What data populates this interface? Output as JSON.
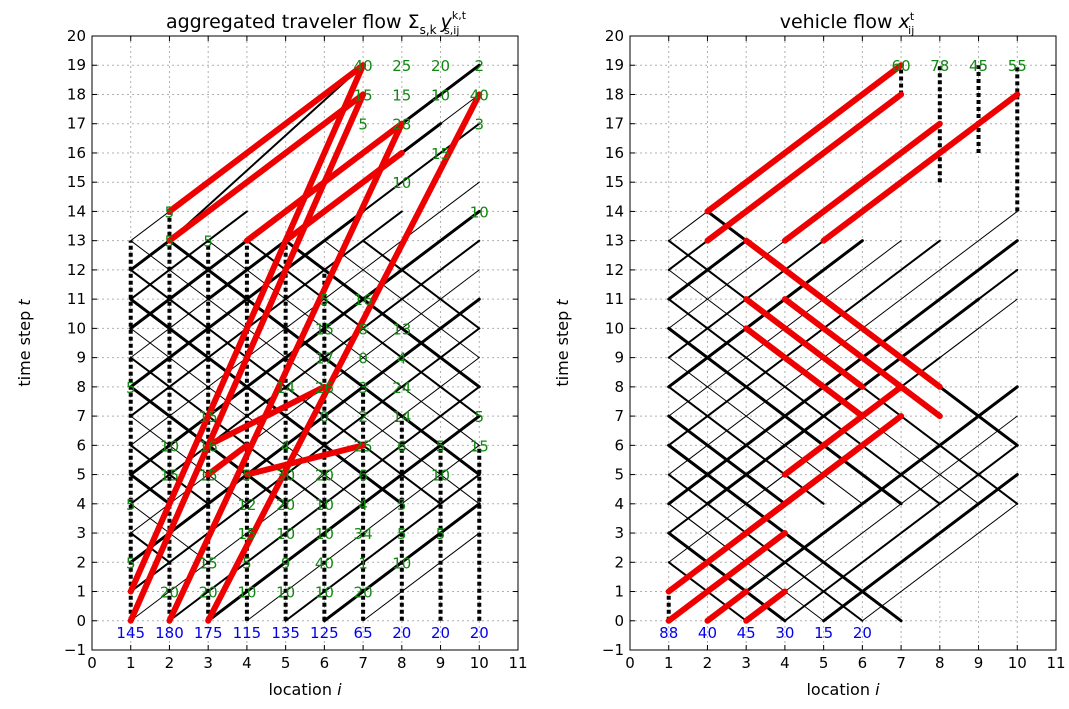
{
  "figure": {
    "left_title_prefix": "aggregated traveler flow Σ",
    "left_title_sub": "s,k",
    "left_title_y": "y",
    "left_title_y_sup": "k,t",
    "left_title_y_sub": "s,ij",
    "right_title_prefix": "vehicle flow ",
    "right_title_x": "x",
    "right_title_x_sup": "t",
    "right_title_x_sub": "ij"
  },
  "axis_text": {
    "xlabel_word": "location ",
    "xlabel_var": "i",
    "ylabel_word": "time step ",
    "ylabel_var": "t"
  },
  "colors": {
    "flow_line": "#000000",
    "highlight_line": "#ee0000",
    "top_label": "#118811",
    "bottom_label": "#0000ee",
    "grid": "#b0b0b0"
  },
  "chart_data": [
    {
      "type": "line",
      "panel": "left",
      "title": "aggregated traveler flow Σ_{s,k} y^{k,t}_{s,ij}",
      "xlabel": "location i",
      "ylabel": "time step t",
      "xlim": [
        0,
        11
      ],
      "ylim": [
        -1,
        20
      ],
      "xticks": [
        0,
        1,
        2,
        3,
        4,
        5,
        6,
        7,
        8,
        9,
        10,
        11
      ],
      "yticks": [
        -1,
        0,
        1,
        2,
        3,
        4,
        5,
        6,
        7,
        8,
        9,
        10,
        11,
        12,
        13,
        14,
        15,
        16,
        17,
        18,
        19,
        20
      ],
      "grid": true,
      "top_labels": [
        {
          "x": 7,
          "y": 19,
          "text": "40"
        },
        {
          "x": 8,
          "y": 19,
          "text": "25"
        },
        {
          "x": 9,
          "y": 19,
          "text": "20"
        },
        {
          "x": 10,
          "y": 19,
          "text": "2"
        },
        {
          "x": 7,
          "y": 18,
          "text": "15"
        },
        {
          "x": 8,
          "y": 18,
          "text": "15"
        },
        {
          "x": 9,
          "y": 18,
          "text": "10"
        },
        {
          "x": 10,
          "y": 18,
          "text": "40"
        },
        {
          "x": 7,
          "y": 17,
          "text": "5"
        },
        {
          "x": 8,
          "y": 17,
          "text": "28"
        },
        {
          "x": 10,
          "y": 17,
          "text": "3"
        },
        {
          "x": 9,
          "y": 16,
          "text": "15"
        },
        {
          "x": 8,
          "y": 15,
          "text": "10"
        },
        {
          "x": 10,
          "y": 14,
          "text": "10"
        },
        {
          "x": 2,
          "y": 14,
          "text": "5"
        },
        {
          "x": 2,
          "y": 13,
          "text": "5"
        },
        {
          "x": 3,
          "y": 13,
          "text": "5"
        },
        {
          "x": 6,
          "y": 11,
          "text": "5"
        },
        {
          "x": 7,
          "y": 11,
          "text": "16"
        },
        {
          "x": 6,
          "y": 10,
          "text": "15"
        },
        {
          "x": 7,
          "y": 10,
          "text": "8"
        },
        {
          "x": 8,
          "y": 10,
          "text": "13"
        },
        {
          "x": 6,
          "y": 9,
          "text": "17"
        },
        {
          "x": 7,
          "y": 9,
          "text": "0"
        },
        {
          "x": 8,
          "y": 9,
          "text": "4"
        },
        {
          "x": 5,
          "y": 8,
          "text": "14"
        },
        {
          "x": 6,
          "y": 8,
          "text": "26"
        },
        {
          "x": 7,
          "y": 8,
          "text": "3"
        },
        {
          "x": 8,
          "y": 8,
          "text": "24"
        },
        {
          "x": 6,
          "y": 7,
          "text": "0"
        },
        {
          "x": 7,
          "y": 7,
          "text": "2"
        },
        {
          "x": 8,
          "y": 7,
          "text": "14"
        },
        {
          "x": 10,
          "y": 7,
          "text": "5"
        },
        {
          "x": 7,
          "y": 6,
          "text": "25"
        },
        {
          "x": 8,
          "y": 6,
          "text": "6"
        },
        {
          "x": 9,
          "y": 6,
          "text": "5"
        },
        {
          "x": 10,
          "y": 6,
          "text": "15"
        },
        {
          "x": 6,
          "y": 5,
          "text": "20"
        },
        {
          "x": 7,
          "y": 5,
          "text": "6"
        },
        {
          "x": 9,
          "y": 5,
          "text": "10"
        },
        {
          "x": 5,
          "y": 5,
          "text": "30"
        },
        {
          "x": 5,
          "y": 6,
          "text": "4"
        },
        {
          "x": 3,
          "y": 6,
          "text": "16"
        },
        {
          "x": 2,
          "y": 6,
          "text": "10"
        },
        {
          "x": 3,
          "y": 7,
          "text": "15"
        },
        {
          "x": 2,
          "y": 5,
          "text": "15"
        },
        {
          "x": 3,
          "y": 5,
          "text": "15"
        },
        {
          "x": 4,
          "y": 5,
          "text": "5"
        },
        {
          "x": 6,
          "y": 4,
          "text": "10"
        },
        {
          "x": 7,
          "y": 4,
          "text": "4"
        },
        {
          "x": 8,
          "y": 4,
          "text": "5"
        },
        {
          "x": 4,
          "y": 4,
          "text": "12"
        },
        {
          "x": 5,
          "y": 4,
          "text": "20"
        },
        {
          "x": 6,
          "y": 3,
          "text": "10"
        },
        {
          "x": 7,
          "y": 3,
          "text": "34"
        },
        {
          "x": 8,
          "y": 3,
          "text": "5"
        },
        {
          "x": 9,
          "y": 3,
          "text": "5"
        },
        {
          "x": 4,
          "y": 3,
          "text": "15"
        },
        {
          "x": 5,
          "y": 3,
          "text": "10"
        },
        {
          "x": 6,
          "y": 2,
          "text": "40"
        },
        {
          "x": 7,
          "y": 2,
          "text": "1"
        },
        {
          "x": 8,
          "y": 2,
          "text": "10"
        },
        {
          "x": 3,
          "y": 2,
          "text": "15"
        },
        {
          "x": 4,
          "y": 2,
          "text": "5"
        },
        {
          "x": 5,
          "y": 2,
          "text": "9"
        },
        {
          "x": 2,
          "y": 1,
          "text": "20"
        },
        {
          "x": 3,
          "y": 1,
          "text": "20"
        },
        {
          "x": 4,
          "y": 1,
          "text": "10"
        },
        {
          "x": 5,
          "y": 1,
          "text": "10"
        },
        {
          "x": 6,
          "y": 1,
          "text": "10"
        },
        {
          "x": 7,
          "y": 1,
          "text": "20"
        },
        {
          "x": 1,
          "y": 8,
          "text": "5"
        },
        {
          "x": 1,
          "y": 4,
          "text": "5"
        },
        {
          "x": 1,
          "y": 2,
          "text": "5"
        }
      ],
      "bottom_labels": [
        {
          "x": 1,
          "text": "145"
        },
        {
          "x": 2,
          "text": "180"
        },
        {
          "x": 3,
          "text": "175"
        },
        {
          "x": 4,
          "text": "115"
        },
        {
          "x": 5,
          "text": "135"
        },
        {
          "x": 6,
          "text": "125"
        },
        {
          "x": 7,
          "text": "65"
        },
        {
          "x": 8,
          "text": "20"
        },
        {
          "x": 9,
          "text": "20"
        },
        {
          "x": 10,
          "text": "20"
        }
      ],
      "red_segments": [
        [
          1,
          1,
          7,
          19
        ],
        [
          1,
          0,
          7,
          18
        ],
        [
          2,
          0,
          8,
          17
        ],
        [
          3,
          0,
          10,
          18
        ],
        [
          2,
          13,
          7,
          18
        ],
        [
          2,
          14,
          7,
          19
        ],
        [
          4,
          13,
          8,
          17
        ],
        [
          5,
          13,
          8,
          16
        ],
        [
          3,
          6,
          6,
          8
        ],
        [
          4,
          5,
          7,
          6
        ],
        [
          3,
          5,
          4,
          6
        ]
      ],
      "black_segments": [
        [
          1,
          13,
          7,
          19
        ],
        [
          2,
          13,
          7,
          19
        ],
        [
          1,
          10,
          10,
          19
        ],
        [
          2,
          10,
          10,
          18
        ],
        [
          3,
          10,
          10,
          17
        ],
        [
          3,
          11,
          9,
          17
        ],
        [
          1,
          0,
          10,
          9
        ],
        [
          2,
          0,
          10,
          8
        ],
        [
          3,
          0,
          10,
          7
        ],
        [
          4,
          0,
          10,
          6
        ],
        [
          5,
          0,
          10,
          5
        ],
        [
          6,
          0,
          10,
          4
        ],
        [
          7,
          0,
          10,
          3
        ],
        [
          1,
          1,
          10,
          10
        ],
        [
          1,
          2,
          10,
          11
        ],
        [
          1,
          3,
          10,
          12
        ],
        [
          1,
          4,
          10,
          13
        ],
        [
          1,
          5,
          10,
          14
        ],
        [
          1,
          6,
          10,
          15
        ],
        [
          1,
          7,
          8,
          14
        ],
        [
          1,
          8,
          7,
          14
        ],
        [
          1,
          9,
          6,
          14
        ],
        [
          1,
          11,
          4,
          14
        ],
        [
          1,
          12,
          2,
          13
        ],
        [
          1,
          13,
          10,
          4
        ],
        [
          1,
          12,
          9,
          4
        ],
        [
          1,
          11,
          8,
          4
        ],
        [
          1,
          10,
          7,
          4
        ],
        [
          1,
          9,
          6,
          4
        ],
        [
          1,
          8,
          5,
          4
        ],
        [
          1,
          7,
          4,
          4
        ],
        [
          1,
          6,
          3,
          4
        ],
        [
          2,
          13,
          10,
          5
        ],
        [
          3,
          13,
          10,
          6
        ],
        [
          4,
          13,
          10,
          7
        ],
        [
          5,
          13,
          10,
          8
        ],
        [
          6,
          13,
          10,
          9
        ],
        [
          7,
          13,
          10,
          10
        ],
        [
          1,
          5,
          2,
          4
        ],
        [
          1,
          4,
          3,
          2
        ],
        [
          1,
          3,
          2,
          2
        ]
      ],
      "dashed_columns": [
        {
          "x": 1,
          "y0": 0,
          "y1": 13
        },
        {
          "x": 2,
          "y0": 0,
          "y1": 14
        },
        {
          "x": 3,
          "y0": 0,
          "y1": 13
        },
        {
          "x": 4,
          "y0": 0,
          "y1": 13
        },
        {
          "x": 5,
          "y0": 0,
          "y1": 13
        },
        {
          "x": 6,
          "y0": 0,
          "y1": 12
        },
        {
          "x": 7,
          "y0": 0,
          "y1": 8
        },
        {
          "x": 8,
          "y0": 0,
          "y1": 7
        },
        {
          "x": 9,
          "y0": 0,
          "y1": 6
        },
        {
          "x": 10,
          "y0": 0,
          "y1": 6
        }
      ]
    },
    {
      "type": "line",
      "panel": "right",
      "title": "vehicle flow x^t_{ij}",
      "xlabel": "location i",
      "ylabel": "time step t",
      "xlim": [
        0,
        11
      ],
      "ylim": [
        -1,
        20
      ],
      "xticks": [
        0,
        1,
        2,
        3,
        4,
        5,
        6,
        7,
        8,
        9,
        10,
        11
      ],
      "yticks": [
        -1,
        0,
        1,
        2,
        3,
        4,
        5,
        6,
        7,
        8,
        9,
        10,
        11,
        12,
        13,
        14,
        15,
        16,
        17,
        18,
        19,
        20
      ],
      "grid": true,
      "top_labels": [
        {
          "x": 7,
          "y": 19,
          "text": "60"
        },
        {
          "x": 8,
          "y": 19,
          "text": "78"
        },
        {
          "x": 9,
          "y": 19,
          "text": "45"
        },
        {
          "x": 10,
          "y": 19,
          "text": "55"
        }
      ],
      "bottom_labels": [
        {
          "x": 1,
          "text": "88"
        },
        {
          "x": 2,
          "text": "40"
        },
        {
          "x": 3,
          "text": "45"
        },
        {
          "x": 4,
          "text": "30"
        },
        {
          "x": 5,
          "text": "15"
        },
        {
          "x": 6,
          "text": "20"
        }
      ],
      "red_segments": [
        [
          1,
          1,
          6,
          6
        ],
        [
          1,
          0,
          4,
          3
        ],
        [
          2,
          0,
          3,
          1
        ],
        [
          3,
          0,
          4,
          1
        ],
        [
          3,
          3,
          7,
          7
        ],
        [
          4,
          5,
          7,
          8
        ],
        [
          2,
          14,
          7,
          19
        ],
        [
          2,
          13,
          7,
          18
        ],
        [
          4,
          13,
          8,
          17
        ],
        [
          5,
          13,
          10,
          18
        ],
        [
          3,
          13,
          8,
          8
        ],
        [
          3,
          11,
          6,
          8
        ],
        [
          3,
          10,
          6,
          7
        ],
        [
          4,
          11,
          8,
          7
        ]
      ],
      "black_segments": [
        [
          1,
          13,
          2,
          14
        ],
        [
          1,
          12,
          2,
          13
        ],
        [
          1,
          11,
          3,
          13
        ],
        [
          1,
          10,
          4,
          13
        ],
        [
          1,
          9,
          5,
          13
        ],
        [
          1,
          8,
          6,
          13
        ],
        [
          1,
          7,
          7,
          13
        ],
        [
          1,
          13,
          10,
          4
        ],
        [
          2,
          14,
          10,
          6
        ],
        [
          1,
          12,
          9,
          4
        ],
        [
          1,
          11,
          8,
          4
        ],
        [
          1,
          10,
          7,
          4
        ],
        [
          1,
          9,
          6,
          4
        ],
        [
          1,
          8,
          5,
          4
        ],
        [
          1,
          7,
          4,
          4
        ],
        [
          1,
          2,
          10,
          11
        ],
        [
          1,
          3,
          10,
          12
        ],
        [
          1,
          4,
          10,
          13
        ],
        [
          1,
          5,
          10,
          14
        ],
        [
          1,
          6,
          8,
          13
        ],
        [
          2,
          0,
          10,
          8
        ],
        [
          3,
          0,
          10,
          7
        ],
        [
          4,
          0,
          10,
          6
        ],
        [
          5,
          0,
          10,
          5
        ],
        [
          6,
          0,
          10,
          4
        ],
        [
          1,
          2,
          3,
          0
        ],
        [
          1,
          3,
          4,
          0
        ],
        [
          1,
          4,
          5,
          0
        ],
        [
          1,
          5,
          6,
          0
        ],
        [
          1,
          6,
          7,
          0
        ],
        [
          2,
          5,
          10,
          13
        ],
        [
          3,
          6,
          10,
          13
        ],
        [
          2,
          4,
          9,
          11
        ],
        [
          3,
          4,
          9,
          10
        ],
        [
          4,
          5,
          8,
          9
        ],
        [
          1,
          6,
          2,
          5
        ],
        [
          1,
          4,
          3,
          2
        ],
        [
          2,
          5,
          7,
          0
        ]
      ],
      "dashed_columns": [
        {
          "x": 1,
          "y0": 0,
          "y1": 1
        },
        {
          "x": 7,
          "y0": 18,
          "y1": 19
        },
        {
          "x": 8,
          "y0": 15,
          "y1": 19
        },
        {
          "x": 9,
          "y0": 16,
          "y1": 19
        },
        {
          "x": 10,
          "y0": 14,
          "y1": 19
        }
      ]
    }
  ]
}
